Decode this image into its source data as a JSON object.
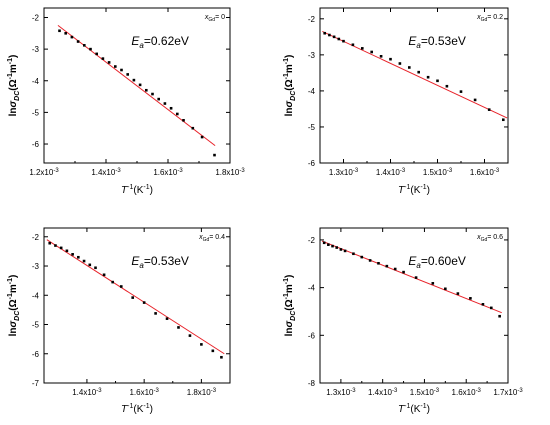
{
  "colors": {
    "fit_line": "#e8232a",
    "points": "#000000",
    "frame": "#000000"
  },
  "chart_data": [
    {
      "type": "scatter",
      "composition_label": "x",
      "composition_sub": "Gd",
      "composition_value": "= 0",
      "ea_main": "E",
      "ea_sub": "a",
      "ea_value": "=0.62eV",
      "xlabel_main": "T",
      "xlabel_sup": "-1",
      "xlabel_unit": "(K",
      "xlabel_unit_sup": "-1",
      "xlabel_close": ")",
      "ylabel_pre": "ln",
      "ylabel_sigma": "σ",
      "ylabel_sub": "DC",
      "ylabel_unit": "(Ω",
      "ylabel_unit_sup1": "-1",
      "ylabel_unit_m": "m",
      "ylabel_unit_sup2": "-1",
      "ylabel_close": ")",
      "xlim": [
        0.0012,
        0.0018
      ],
      "ylim": [
        -6.6,
        -1.7
      ],
      "x_ticks": [
        0.0012,
        0.0014,
        0.0016,
        0.0018
      ],
      "x_tick_labels": [
        "1.2x10-3",
        "1.4x10-3",
        "1.6x10-3",
        "1.8x10-3"
      ],
      "y_ticks": [
        -6,
        -5,
        -4,
        -3,
        -2
      ],
      "y_tick_labels": [
        "-6",
        "-5",
        "-4",
        "-3",
        "-2"
      ],
      "fit": {
        "x": [
          0.001245,
          0.001752
        ],
        "y": [
          -2.25,
          -6.05
        ]
      },
      "points": {
        "x": [
          0.00125,
          0.00127,
          0.00129,
          0.00131,
          0.00133,
          0.00135,
          0.00137,
          0.00139,
          0.00141,
          0.00143,
          0.00145,
          0.00147,
          0.00149,
          0.00151,
          0.00153,
          0.00155,
          0.00157,
          0.00159,
          0.00161,
          0.00163,
          0.00165,
          0.00168,
          0.00171,
          0.00175
        ],
        "y": [
          -2.42,
          -2.5,
          -2.62,
          -2.76,
          -2.88,
          -3.0,
          -3.15,
          -3.3,
          -3.42,
          -3.55,
          -3.66,
          -3.8,
          -3.98,
          -4.13,
          -4.3,
          -4.42,
          -4.58,
          -4.72,
          -4.87,
          -5.05,
          -5.25,
          -5.5,
          -5.78,
          -6.35
        ]
      }
    },
    {
      "type": "scatter",
      "composition_label": "x",
      "composition_sub": "Gd",
      "composition_value": "= 0.2",
      "ea_main": "E",
      "ea_sub": "a",
      "ea_value": "=0.53eV",
      "xlabel_main": "T",
      "xlabel_sup": "-1",
      "xlabel_unit": "(K",
      "xlabel_unit_sup": "-1",
      "xlabel_close": ")",
      "ylabel_pre": "ln",
      "ylabel_sigma": "σ",
      "ylabel_sub": "DC",
      "ylabel_unit": "(Ω",
      "ylabel_unit_sup1": "-1",
      "ylabel_unit_m": "m",
      "ylabel_unit_sup2": "-1",
      "ylabel_close": ")",
      "xlim": [
        0.00125,
        0.00165
      ],
      "ylim": [
        -6.0,
        -1.7
      ],
      "x_ticks": [
        0.0013,
        0.0014,
        0.0015,
        0.0016
      ],
      "x_tick_labels": [
        "1.3x10-3",
        "1.4x10-3",
        "1.5x10-3",
        "1.6x10-3"
      ],
      "y_ticks": [
        -6,
        -5,
        -4,
        -3,
        -2
      ],
      "y_tick_labels": [
        "-6",
        "-5",
        "-4",
        "-3",
        "-2"
      ],
      "fit": {
        "x": [
          0.001255,
          0.001648
        ],
        "y": [
          -2.35,
          -4.75
        ]
      },
      "points": {
        "x": [
          0.00126,
          0.00127,
          0.00128,
          0.00129,
          0.0013,
          0.00132,
          0.00134,
          0.00136,
          0.00138,
          0.0014,
          0.00142,
          0.00144,
          0.00146,
          0.00148,
          0.0015,
          0.00152,
          0.00155,
          0.00158,
          0.00161,
          0.00164
        ],
        "y": [
          -2.4,
          -2.45,
          -2.5,
          -2.56,
          -2.62,
          -2.72,
          -2.82,
          -2.92,
          -3.04,
          -3.12,
          -3.24,
          -3.35,
          -3.48,
          -3.62,
          -3.72,
          -3.87,
          -4.02,
          -4.25,
          -4.52,
          -4.8
        ]
      }
    },
    {
      "type": "scatter",
      "composition_label": "x",
      "composition_sub": "Gd",
      "composition_value": "= 0.4",
      "ea_main": "E",
      "ea_sub": "a",
      "ea_value": "=0.53eV",
      "xlabel_main": "T",
      "xlabel_sup": "-1",
      "xlabel_unit": "(K",
      "xlabel_unit_sup": "-1",
      "xlabel_close": ")",
      "ylabel_pre": "ln",
      "ylabel_sigma": "σ",
      "ylabel_sub": "DC",
      "ylabel_unit": "(Ω",
      "ylabel_unit_sup1": "-1",
      "ylabel_unit_m": "m",
      "ylabel_unit_sup2": "-1",
      "ylabel_close": ")",
      "xlim": [
        0.00125,
        0.0019
      ],
      "ylim": [
        -7.0,
        -1.7
      ],
      "x_ticks": [
        0.0014,
        0.0016,
        0.0018
      ],
      "x_tick_labels": [
        "1.4x10-3",
        "1.6x10-3",
        "1.8x10-3"
      ],
      "y_ticks": [
        -7,
        -6,
        -5,
        -4,
        -3,
        -2
      ],
      "y_tick_labels": [
        "-7",
        "-6",
        "-5",
        "-4",
        "-3",
        "-2"
      ],
      "fit": {
        "x": [
          0.00126,
          0.00188
        ],
        "y": [
          -2.1,
          -6.0
        ]
      },
      "points": {
        "x": [
          0.00127,
          0.00129,
          0.00131,
          0.00133,
          0.00135,
          0.00137,
          0.00139,
          0.00141,
          0.00143,
          0.00146,
          0.00149,
          0.00152,
          0.00156,
          0.0016,
          0.00164,
          0.00168,
          0.00172,
          0.00176,
          0.0018,
          0.00184,
          0.00187
        ],
        "y": [
          -2.22,
          -2.3,
          -2.38,
          -2.48,
          -2.6,
          -2.7,
          -2.83,
          -2.96,
          -3.06,
          -3.3,
          -3.55,
          -3.7,
          -4.08,
          -4.25,
          -4.62,
          -4.8,
          -5.1,
          -5.38,
          -5.68,
          -5.9,
          -6.12
        ]
      }
    },
    {
      "type": "scatter",
      "composition_label": "x",
      "composition_sub": "Gd",
      "composition_value": "= 0.6",
      "ea_main": "E",
      "ea_sub": "a",
      "ea_value": "=0.60eV",
      "xlabel_main": "T",
      "xlabel_sup": "-1",
      "xlabel_unit": "(K",
      "xlabel_unit_sup": "-1",
      "xlabel_close": ")",
      "ylabel_pre": "ln",
      "ylabel_sigma": "σ",
      "ylabel_sub": "DC",
      "ylabel_unit": "(Ω",
      "ylabel_unit_sup1": "-1",
      "ylabel_unit_m": "m",
      "ylabel_unit_sup2": "-1",
      "ylabel_close": ")",
      "xlim": [
        0.00125,
        0.0017
      ],
      "ylim": [
        -8.0,
        -1.5
      ],
      "x_ticks": [
        0.0013,
        0.0014,
        0.0015,
        0.0016,
        0.0017
      ],
      "x_tick_labels": [
        "1.3x10-3",
        "1.4x10-3",
        "1.5x10-3",
        "1.6x10-3",
        "1.7x10-3"
      ],
      "y_ticks": [
        -8,
        -6,
        -4,
        -2
      ],
      "y_tick_labels": [
        "-8",
        "-6",
        "-4",
        "-2"
      ],
      "fit": {
        "x": [
          0.001255,
          0.001685
        ],
        "y": [
          -2.05,
          -5.05
        ]
      },
      "points": {
        "x": [
          0.00126,
          0.00127,
          0.00128,
          0.00129,
          0.0013,
          0.00131,
          0.00133,
          0.00135,
          0.00137,
          0.00139,
          0.00141,
          0.00143,
          0.00145,
          0.00148,
          0.00152,
          0.00155,
          0.00158,
          0.00161,
          0.00164,
          0.00166,
          0.00168
        ],
        "y": [
          -2.12,
          -2.2,
          -2.26,
          -2.32,
          -2.4,
          -2.46,
          -2.58,
          -2.72,
          -2.86,
          -2.98,
          -3.1,
          -3.22,
          -3.35,
          -3.58,
          -3.82,
          -4.05,
          -4.25,
          -4.45,
          -4.7,
          -4.85,
          -5.2
        ]
      }
    }
  ]
}
